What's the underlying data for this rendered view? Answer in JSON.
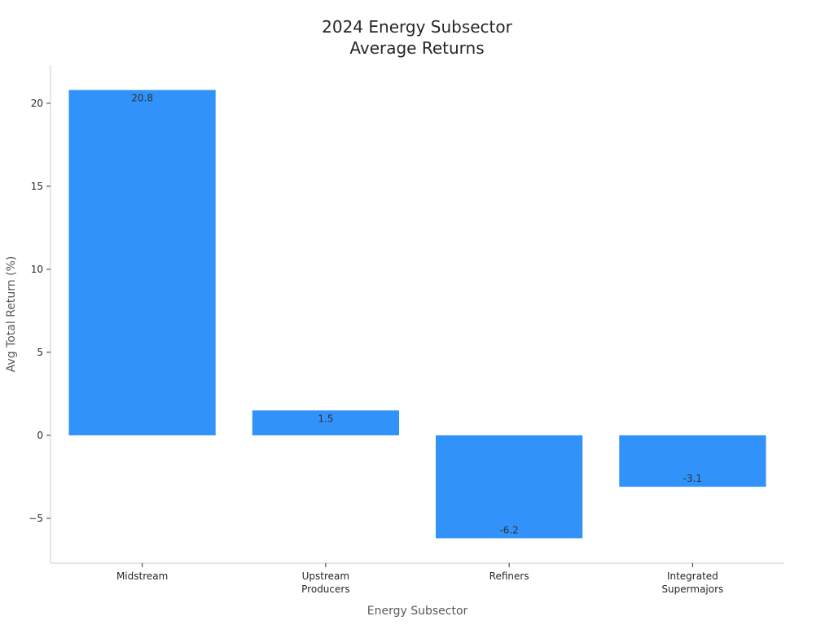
{
  "chart_data": {
    "type": "bar",
    "title_lines": [
      "2024 Energy Subsector",
      "Average Returns"
    ],
    "xlabel": "Energy Subsector",
    "ylabel": "Avg Total Return (%)",
    "categories": [
      [
        "Midstream"
      ],
      [
        "Upstream",
        "Producers"
      ],
      [
        "Refiners"
      ],
      [
        "Integrated",
        "Supermajors"
      ]
    ],
    "values": [
      20.8,
      1.5,
      -6.2,
      -3.1
    ],
    "value_labels": [
      "20.8",
      "1.5",
      "-6.2",
      "-3.1"
    ],
    "ylim": [
      -7.7,
      22.3
    ],
    "yticks": [
      -5,
      0,
      5,
      10,
      15,
      20
    ],
    "ytick_labels": [
      "−5",
      "0",
      "5",
      "10",
      "15",
      "20"
    ],
    "grid": false,
    "bar_color": "#3192F9",
    "spines": "left-bottom"
  }
}
